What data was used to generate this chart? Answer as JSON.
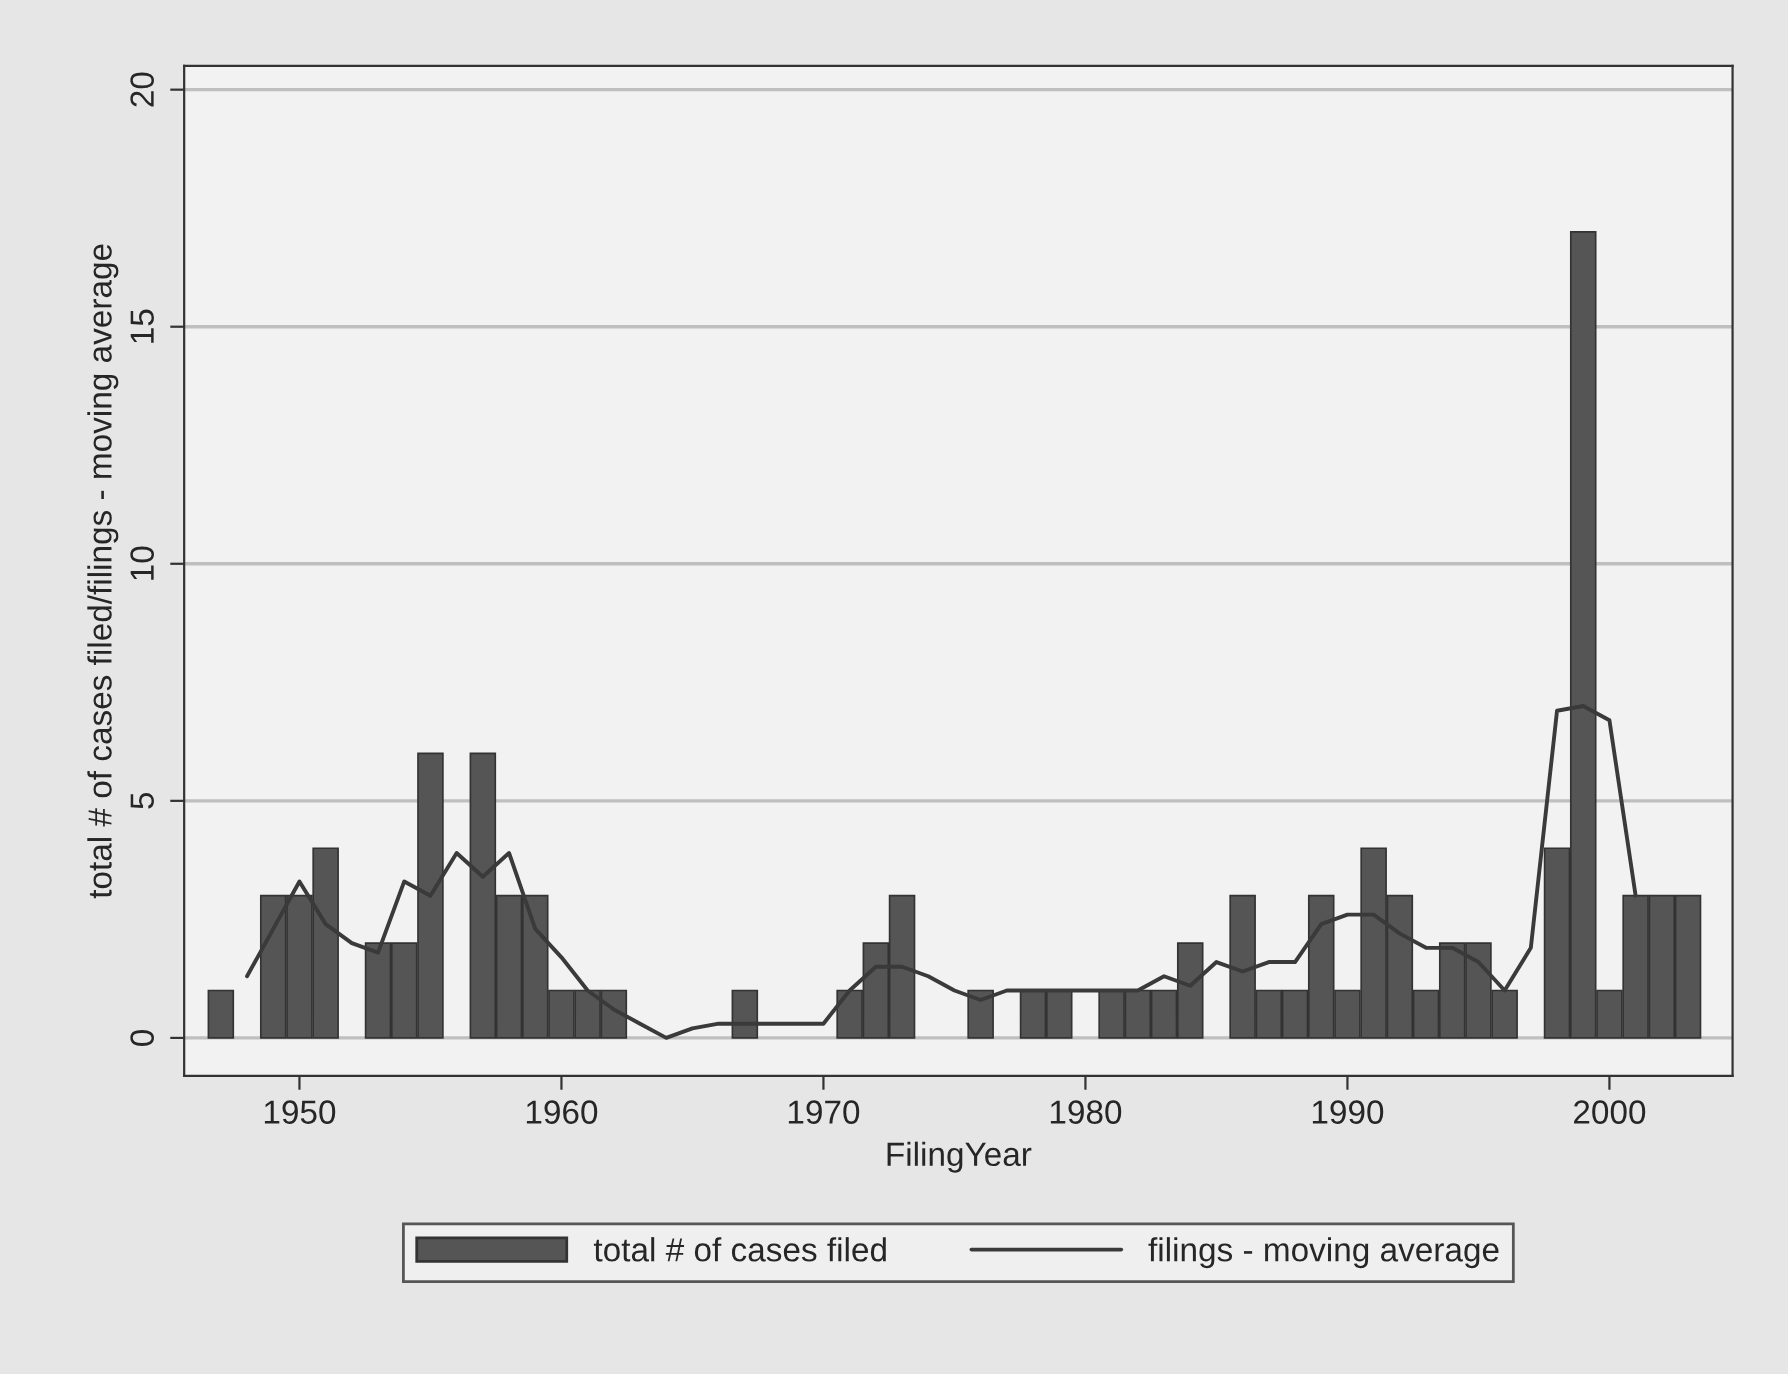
{
  "chart_data": {
    "type": "bar",
    "xlabel": "FilingYear",
    "ylabel": "total # of cases filed/filings - moving average",
    "xlim": [
      1945.6,
      2004.7
    ],
    "xticks": [
      1950,
      1960,
      1970,
      1980,
      1990,
      2000
    ],
    "ylim": [
      -0.8,
      20.5
    ],
    "yticks": [
      0,
      5,
      10,
      15,
      20
    ],
    "grid": "y",
    "legend": "bottom",
    "series": [
      {
        "name": "total # of cases filed",
        "color": "#555555",
        "x": [
          1947,
          1949,
          1950,
          1951,
          1953,
          1954,
          1955,
          1957,
          1958,
          1959,
          1960,
          1961,
          1962,
          1967,
          1971,
          1972,
          1973,
          1976,
          1978,
          1979,
          1981,
          1982,
          1983,
          1984,
          1986,
          1987,
          1988,
          1989,
          1990,
          1991,
          1992,
          1993,
          1994,
          1995,
          1996,
          1998,
          1999,
          2000,
          2001,
          2002,
          2003
        ],
        "values": [
          1,
          3,
          3,
          4,
          2,
          2,
          6,
          6,
          3,
          3,
          1,
          1,
          1,
          1,
          1,
          2,
          3,
          1,
          1,
          1,
          1,
          1,
          1,
          2,
          3,
          1,
          1,
          3,
          1,
          4,
          3,
          1,
          2,
          2,
          1,
          4,
          17,
          1,
          3,
          3,
          3
        ]
      },
      {
        "name": "filings - moving average",
        "type": "line",
        "color": "#3a3a3a",
        "x": [
          1948,
          1949,
          1950,
          1951,
          1952,
          1953,
          1954,
          1955,
          1956,
          1957,
          1958,
          1959,
          1960,
          1961,
          1962,
          1963,
          1964,
          1965,
          1966,
          1967,
          1968,
          1969,
          1970,
          1971,
          1972,
          1973,
          1974,
          1975,
          1976,
          1977,
          1978,
          1979,
          1980,
          1981,
          1982,
          1983,
          1984,
          1985,
          1986,
          1987,
          1988,
          1989,
          1990,
          1991,
          1992,
          1993,
          1994,
          1995,
          1996,
          1997,
          1998,
          1999,
          2000,
          2001
        ],
        "values": [
          1.3,
          2.3,
          3.3,
          2.4,
          2.0,
          1.8,
          3.3,
          3.0,
          3.9,
          3.4,
          3.9,
          2.3,
          1.7,
          1.0,
          0.6,
          0.3,
          0,
          0.2,
          0.3,
          0.3,
          0.3,
          0.3,
          0.3,
          1.0,
          1.5,
          1.5,
          1.3,
          1.0,
          0.8,
          1.0,
          1.0,
          1.0,
          1.0,
          1.0,
          1.0,
          1.3,
          1.1,
          1.6,
          1.4,
          1.6,
          1.6,
          2.4,
          2.6,
          2.6,
          2.2,
          1.9,
          1.9,
          1.6,
          1.0,
          1.9,
          6.9,
          7.0,
          6.7,
          3.0
        ]
      }
    ]
  }
}
